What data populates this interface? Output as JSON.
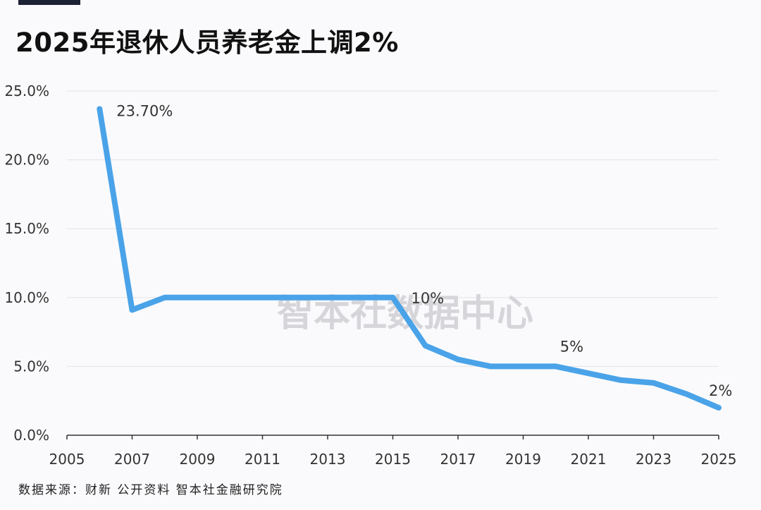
{
  "header": {
    "title": "2025年退休人员养老金上调2%"
  },
  "watermark": "智本社数据中心",
  "source": "数据来源：财新 公开资料 智本社金融研究院",
  "colors": {
    "line": "#4aa3e8",
    "grid": "#e3e3e8",
    "axis": "#333333",
    "text": "#333333",
    "watermark": "#d6d6da"
  },
  "chart_data": {
    "type": "line",
    "title": "2025年退休人员养老金上调2%",
    "xlabel": "",
    "ylabel": "",
    "xlim": [
      2005,
      2025
    ],
    "ylim": [
      0,
      25
    ],
    "x_ticks": [
      "2005",
      "2007",
      "2009",
      "2011",
      "2013",
      "2015",
      "2017",
      "2019",
      "2021",
      "2023",
      "2025"
    ],
    "y_ticks": [
      "0.0%",
      "5.0%",
      "10.0%",
      "15.0%",
      "20.0%",
      "25.0%"
    ],
    "grid": true,
    "series": [
      {
        "x": [
          2006,
          2007,
          2008,
          2009,
          2010,
          2011,
          2012,
          2013,
          2014,
          2015,
          2016,
          2017,
          2018,
          2019,
          2020,
          2021,
          2022,
          2023,
          2024,
          2025
        ],
        "values": [
          23.7,
          9.1,
          10,
          10,
          10,
          10,
          10,
          10,
          10,
          10,
          6.5,
          5.5,
          5,
          5,
          5,
          4.5,
          4,
          3.8,
          3,
          2
        ]
      }
    ],
    "annotations": [
      {
        "x": 2006,
        "y": 23.7,
        "text": "23.70%"
      },
      {
        "x": 2015,
        "y": 10,
        "text": "10%"
      },
      {
        "x": 2020,
        "y": 5,
        "text": "5%"
      },
      {
        "x": 2025,
        "y": 2,
        "text": "2%"
      }
    ]
  }
}
